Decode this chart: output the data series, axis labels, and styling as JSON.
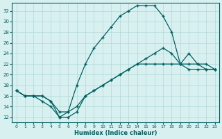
{
  "xlabel": "Humidex (Indice chaleur)",
  "bg_color": "#d8f0f0",
  "line_color": "#006060",
  "xlim": [
    -0.5,
    23.5
  ],
  "ylim": [
    11,
    33.5
  ],
  "yticks": [
    12,
    14,
    16,
    18,
    20,
    22,
    24,
    26,
    28,
    30,
    32
  ],
  "xticks": [
    0,
    1,
    2,
    3,
    4,
    5,
    6,
    7,
    8,
    9,
    10,
    11,
    12,
    13,
    14,
    15,
    16,
    17,
    18,
    19,
    20,
    21,
    22,
    23
  ],
  "line1_x": [
    0,
    1,
    2,
    3,
    4,
    5,
    6,
    7,
    8,
    9,
    10,
    11,
    12,
    13,
    14,
    15,
    16,
    17,
    18,
    19,
    20,
    21,
    22,
    23
  ],
  "line1_y": [
    17,
    16,
    16,
    16,
    15,
    12,
    12,
    13,
    16,
    17,
    18,
    19,
    20,
    21,
    22,
    22,
    22,
    22,
    22,
    22,
    21,
    21,
    21,
    21
  ],
  "line2_x": [
    0,
    1,
    2,
    3,
    4,
    5,
    6,
    7,
    8,
    9,
    10,
    11,
    12,
    13,
    14,
    15,
    16,
    17,
    18,
    19,
    20,
    21,
    22,
    23
  ],
  "line2_y": [
    17,
    16,
    16,
    15,
    14,
    12,
    13,
    18,
    22,
    25,
    27,
    29,
    31,
    32,
    33,
    33,
    33,
    31,
    28,
    22,
    24,
    22,
    22,
    21
  ],
  "line3_x": [
    0,
    1,
    2,
    3,
    4,
    5,
    6,
    7,
    8,
    9,
    10,
    11,
    12,
    13,
    14,
    15,
    16,
    17,
    18,
    19,
    20,
    21,
    22,
    23
  ],
  "line3_y": [
    17,
    16,
    16,
    16,
    15,
    13,
    13,
    14,
    16,
    17,
    18,
    19,
    20,
    21,
    22,
    23,
    24,
    25,
    24,
    22,
    22,
    22,
    21,
    21
  ]
}
